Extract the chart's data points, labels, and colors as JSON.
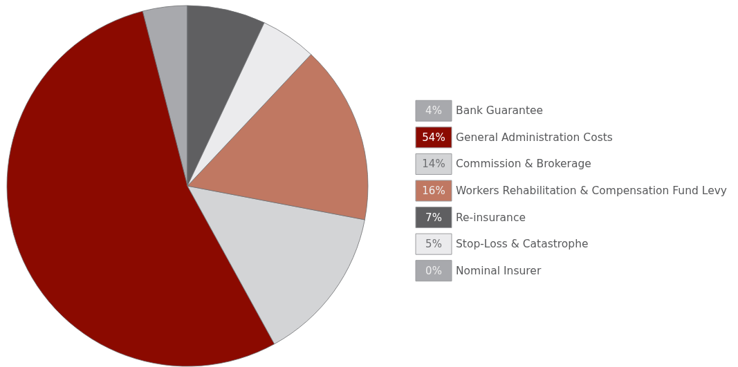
{
  "chart_data": {
    "type": "pie",
    "categories": [
      "Bank Guarantee",
      "General Administration Costs",
      "Commission & Brokerage",
      "Workers Rehabilitation & Compensation Fund Levy",
      "Re-insurance",
      "Stop-Loss & Catastrophe",
      "Nominal Insurer"
    ],
    "values": [
      4,
      54,
      14,
      16,
      7,
      5,
      0
    ],
    "colors": [
      "#a8a9ad",
      "#8b0a00",
      "#d3d4d6",
      "#c07862",
      "#5f5f61",
      "#ebebed",
      "#a8a9ad"
    ],
    "value_labels": [
      "4%",
      "54%",
      "14%",
      "16%",
      "7%",
      "5%",
      "0%"
    ],
    "legend": "right"
  }
}
